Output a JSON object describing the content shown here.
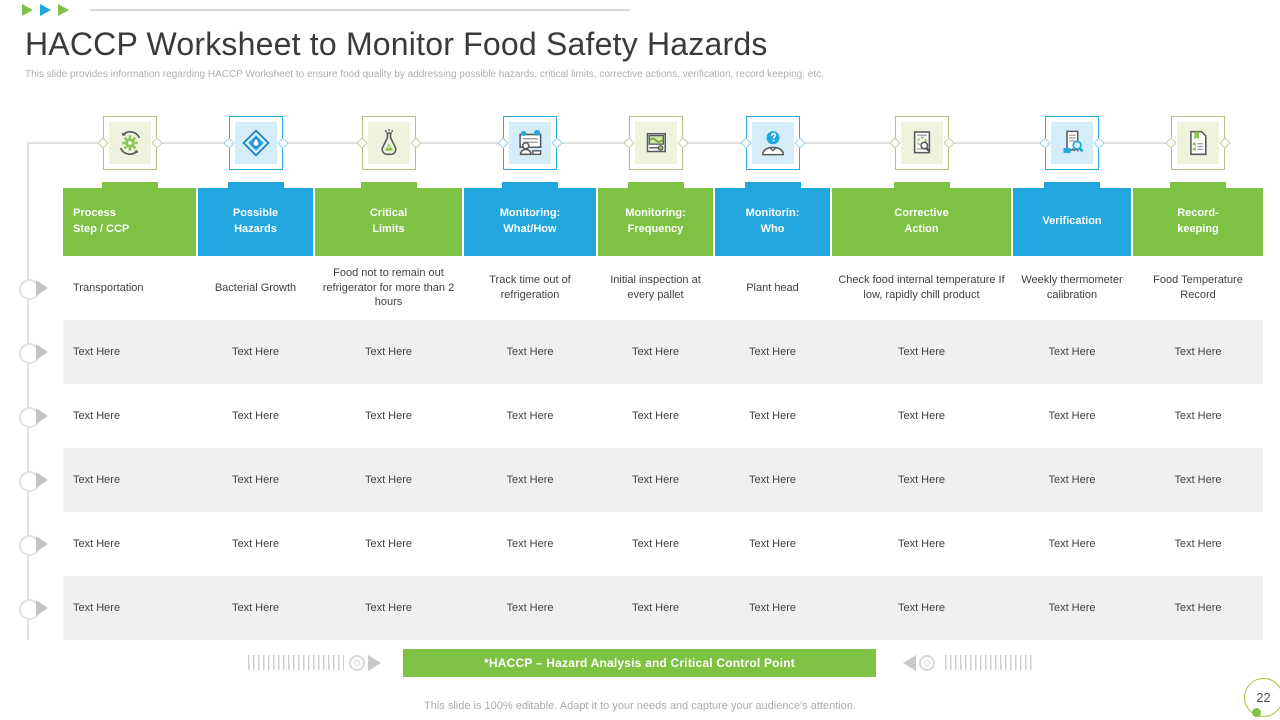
{
  "slide": {
    "title": "HACCP Worksheet to Monitor Food Safety Hazards",
    "subtitle": "This slide provides information regarding HACCP Worksheet to ensure food quality by addressing possible hazards, critical limits, corrective actions, verification, record keeping, etc.",
    "banner_label": "*HACCP  – Hazard Analysis and Critical Control Point",
    "footer_note": "This slide is 100% editable. Adapt it to your needs and capture your audience's attention.",
    "page_number": "22"
  },
  "colors": {
    "green": "#7DC242",
    "blue": "#21A7DE",
    "row_shade": "#F0F0F0",
    "body_text": "#414141",
    "muted_text": "#ABABAB"
  },
  "table": {
    "columns": [
      {
        "label": "Process\nStep / CCP",
        "color": "green",
        "icon": "process-cycle-icon"
      },
      {
        "label": "Possible\nHazards",
        "color": "blue",
        "icon": "diamond-drop-icon"
      },
      {
        "label": "Critical\nLimits",
        "color": "green",
        "icon": "flask-warning-icon"
      },
      {
        "label": "Monitoring:\nWhat/How",
        "color": "blue",
        "icon": "monitor-person-icon"
      },
      {
        "label": "Monitoring:\nFrequency",
        "color": "green",
        "icon": "image-slider-icon"
      },
      {
        "label": "Monitorin:\nWho",
        "color": "blue",
        "icon": "person-question-icon"
      },
      {
        "label": "Corrective\nAction",
        "color": "green",
        "icon": "document-magnifier-icon"
      },
      {
        "label": "Verification",
        "color": "blue",
        "icon": "receipt-magnifier-icon"
      },
      {
        "label": "Record-\nkeeping",
        "color": "green",
        "icon": "document-bookmark-icon"
      }
    ],
    "rows": [
      [
        "Transportation",
        "Bacterial Growth",
        "Food not to remain out refrigerator for more than 2 hours",
        "Track time out of refrigeration",
        "Initial inspection at every pallet",
        "Plant head",
        "Check food internal temperature If low, rapidly chill product",
        "Weekly thermometer calibration",
        "Food Temperature Record"
      ],
      [
        "Text Here",
        "Text Here",
        "Text Here",
        "Text Here",
        "Text Here",
        "Text Here",
        "Text Here",
        "Text Here",
        "Text Here"
      ],
      [
        "Text Here",
        "Text Here",
        "Text Here",
        "Text Here",
        "Text Here",
        "Text Here",
        "Text Here",
        "Text Here",
        "Text Here"
      ],
      [
        "Text Here",
        "Text Here",
        "Text Here",
        "Text Here",
        "Text Here",
        "Text Here",
        "Text Here",
        "Text Here",
        "Text Here"
      ],
      [
        "Text Here",
        "Text Here",
        "Text Here",
        "Text Here",
        "Text Here",
        "Text Here",
        "Text Here",
        "Text Here",
        "Text Here"
      ],
      [
        "Text Here",
        "Text Here",
        "Text Here",
        "Text Here",
        "Text Here",
        "Text Here",
        "Text Here",
        "Text Here",
        "Text Here"
      ]
    ],
    "row_marker_count": 6
  }
}
